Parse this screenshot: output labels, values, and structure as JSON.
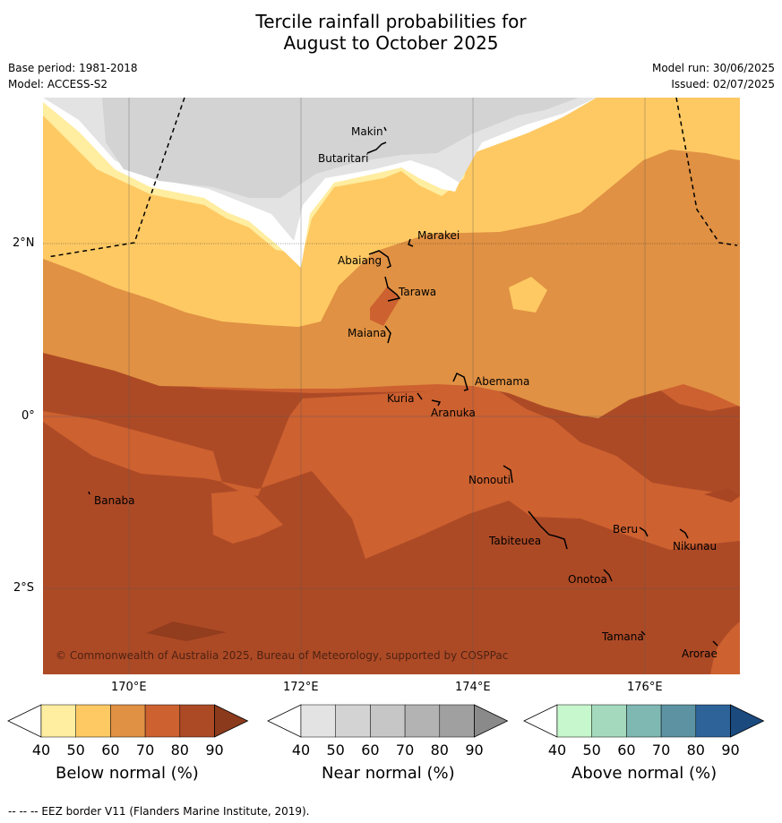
{
  "title_line1": "Tercile rainfall probabilities for",
  "title_line2": "August to October 2025",
  "base_period": "Base period: 1981-2018",
  "model": "Model: ACCESS-S2",
  "model_run": "Model run: 30/06/2025",
  "issued": "Issued: 02/07/2025",
  "copyright": "© Commonwealth of Australia 2025, Bureau of Meteorology, supported by COSPPac",
  "lat_labels": [
    "2°N",
    "0°",
    "2°S"
  ],
  "lon_labels": [
    "170°E",
    "172°E",
    "174°E",
    "176°E"
  ],
  "places": [
    "Makin",
    "Butaritari",
    "Marakei",
    "Abaiang",
    "Tarawa",
    "Maiana",
    "Abemama",
    "Kuria",
    "Aranuka",
    "Banaba",
    "Nonouti",
    "Beru",
    "Nikunau",
    "Tabiteuea",
    "Onotoa",
    "Tamana",
    "Arorae"
  ],
  "colorbars": [
    {
      "title": "Below normal (%)",
      "ticks": [
        "40",
        "50",
        "60",
        "70",
        "80",
        "90"
      ],
      "colors": [
        "#ffffff",
        "#ffeda0",
        "#fec963",
        "#e09143",
        "#cd6130",
        "#ad4a26",
        "#8b3a1c"
      ]
    },
    {
      "title": "Near normal (%)",
      "ticks": [
        "40",
        "50",
        "60",
        "70",
        "80",
        "90"
      ],
      "colors": [
        "#ffffff",
        "#e3e3e3",
        "#d3d3d3",
        "#c6c6c6",
        "#b3b3b3",
        "#a0a0a0",
        "#8a8a8a"
      ]
    },
    {
      "title": "Above normal (%)",
      "ticks": [
        "40",
        "50",
        "60",
        "70",
        "80",
        "90"
      ],
      "colors": [
        "#ffffff",
        "#c7f7cc",
        "#a4d9bd",
        "#7fb7b3",
        "#5c92a2",
        "#2d6399",
        "#1b4a7f"
      ]
    }
  ],
  "footer": "--  --  -- EEZ border V11 (Flanders Marine Institute, 2019)."
}
